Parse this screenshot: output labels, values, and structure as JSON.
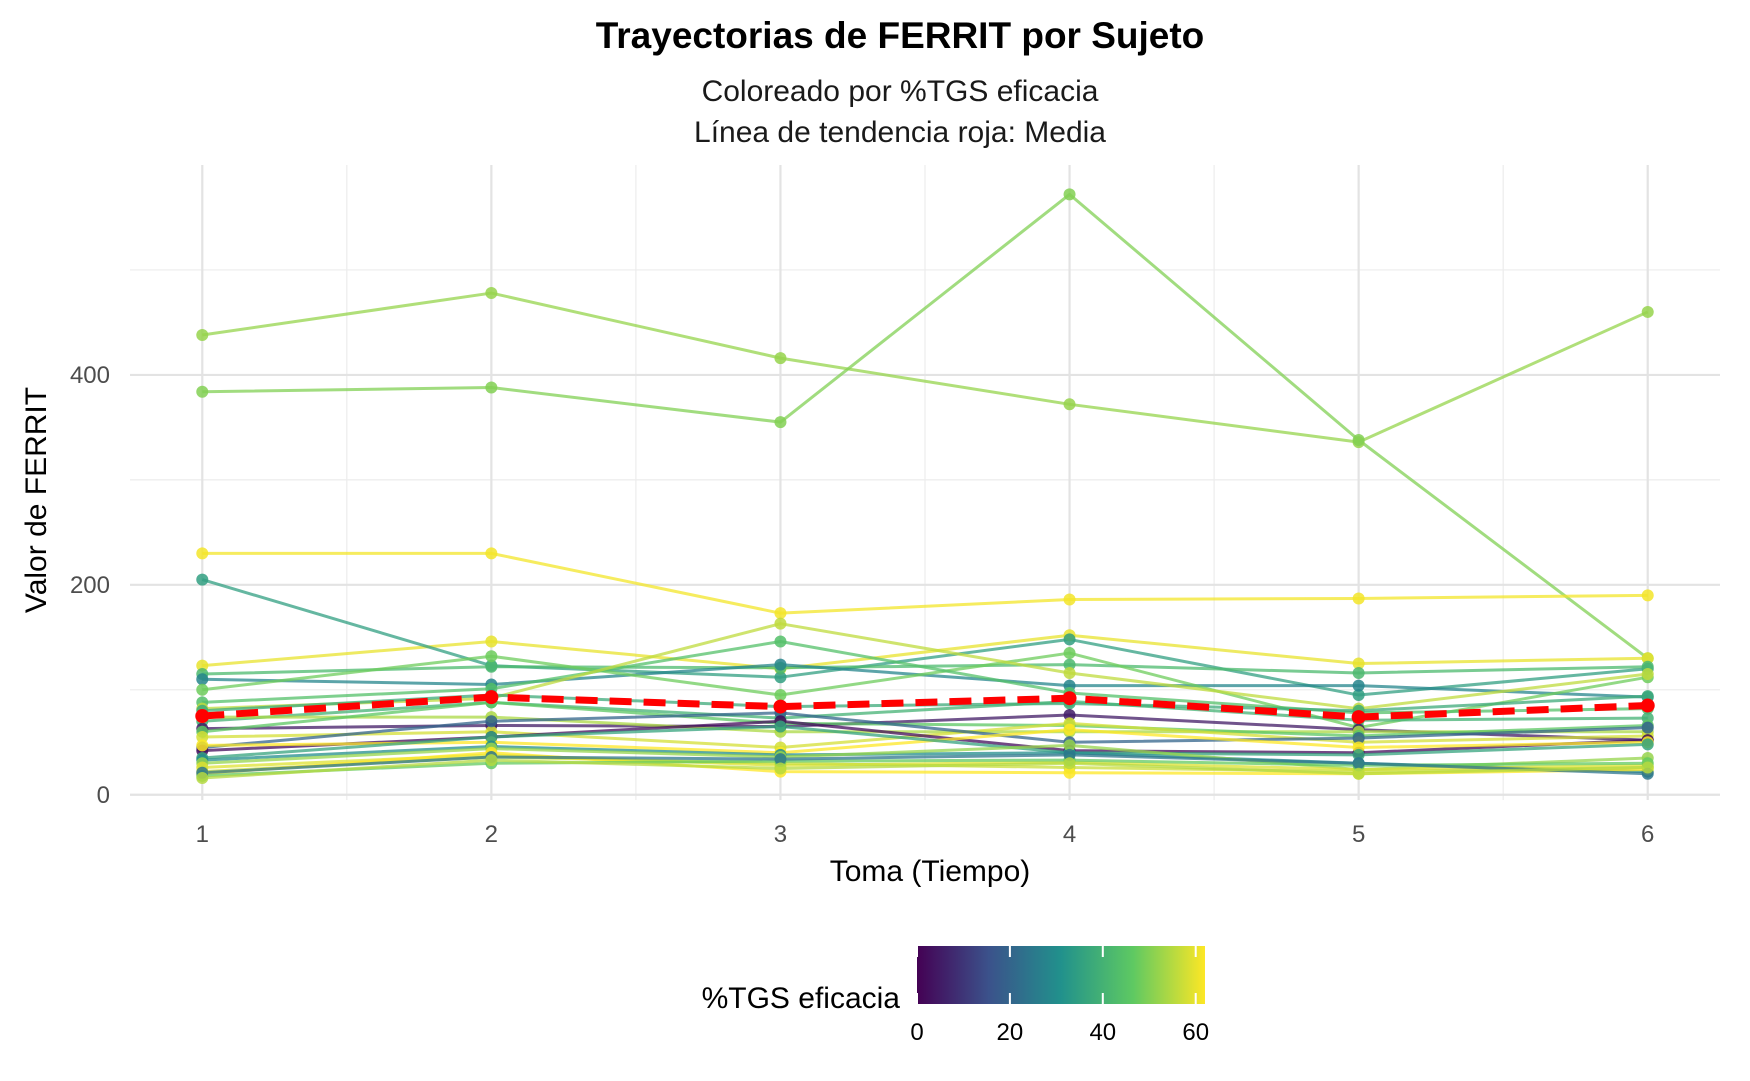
{
  "chart_data": {
    "type": "line",
    "title": "Trayectorias de FERRIT por Sujeto",
    "subtitle_lines": [
      "Coloreado por %TGS eficacia",
      "Línea de tendencia roja: Media"
    ],
    "xlabel": "Toma (Tiempo)",
    "ylabel": "Valor de FERRIT",
    "x": [
      1,
      2,
      3,
      4,
      5,
      6
    ],
    "x_tick_labels": [
      "1",
      "2",
      "3",
      "4",
      "5",
      "6"
    ],
    "y_ticks": [
      0,
      200,
      400
    ],
    "y_tick_labels": [
      "0",
      "200",
      "400"
    ],
    "xlim": [
      0.75,
      6.25
    ],
    "ylim": [
      -5,
      600
    ],
    "grid": true,
    "legend": {
      "title": "%TGS eficacia",
      "position": "bottom",
      "type": "colorbar",
      "range": [
        0,
        62
      ],
      "ticks": [
        0,
        20,
        40,
        60
      ],
      "tick_labels": [
        "0",
        "20",
        "40",
        "60"
      ],
      "palette": [
        "#440154",
        "#3b528b",
        "#21918c",
        "#5ec962",
        "#fde725"
      ]
    },
    "mean_line": {
      "label": "Media",
      "color": "#ff0000",
      "values": [
        75,
        93,
        84,
        92,
        74,
        85
      ]
    },
    "series": [
      {
        "tgs": 52,
        "values": [
          438,
          478,
          416,
          372,
          336,
          460
        ]
      },
      {
        "tgs": 50,
        "values": [
          384,
          388,
          355,
          572,
          338,
          130
        ]
      },
      {
        "tgs": 61,
        "values": [
          230,
          230,
          173,
          186,
          187,
          190
        ]
      },
      {
        "tgs": 60,
        "values": [
          123,
          146,
          120,
          152,
          125,
          130
        ]
      },
      {
        "tgs": 35,
        "values": [
          205,
          123,
          112,
          148,
          95,
          120
        ]
      },
      {
        "tgs": 42,
        "values": [
          115,
          122,
          121,
          124,
          116,
          122
        ]
      },
      {
        "tgs": 28,
        "values": [
          110,
          105,
          124,
          104,
          104,
          93
        ]
      },
      {
        "tgs": 48,
        "values": [
          100,
          132,
          95,
          135,
          64,
          112
        ]
      },
      {
        "tgs": 44,
        "values": [
          88,
          101,
          146,
          97,
          78,
          82
        ]
      },
      {
        "tgs": 56,
        "values": [
          82,
          92,
          163,
          116,
          82,
          115
        ]
      },
      {
        "tgs": 38,
        "values": [
          80,
          95,
          84,
          87,
          80,
          94
        ]
      },
      {
        "tgs": 40,
        "values": [
          70,
          88,
          73,
          89,
          71,
          73
        ]
      },
      {
        "tgs": 5,
        "values": [
          63,
          66,
          65,
          76,
          62,
          52
        ]
      },
      {
        "tgs": 54,
        "values": [
          74,
          74,
          60,
          60,
          60,
          60
        ]
      },
      {
        "tgs": 46,
        "values": [
          60,
          88,
          68,
          66,
          56,
          66
        ]
      },
      {
        "tgs": 58,
        "values": [
          55,
          60,
          45,
          68,
          50,
          56
        ]
      },
      {
        "tgs": 20,
        "values": [
          45,
          70,
          78,
          50,
          54,
          64
        ]
      },
      {
        "tgs": 2,
        "values": [
          42,
          55,
          70,
          42,
          40,
          52
        ]
      },
      {
        "tgs": 62,
        "values": [
          47,
          50,
          40,
          62,
          45,
          50
        ]
      },
      {
        "tgs": 36,
        "values": [
          35,
          55,
          65,
          40,
          38,
          48
        ]
      },
      {
        "tgs": 30,
        "values": [
          33,
          46,
          38,
          40,
          30,
          22
        ]
      },
      {
        "tgs": 52,
        "values": [
          30,
          44,
          36,
          47,
          24,
          35
        ]
      },
      {
        "tgs": 59,
        "values": [
          26,
          38,
          28,
          31,
          24,
          28
        ]
      },
      {
        "tgs": 57,
        "values": [
          22,
          36,
          30,
          26,
          22,
          26
        ]
      },
      {
        "tgs": 62,
        "values": [
          20,
          40,
          22,
          21,
          20,
          24
        ]
      },
      {
        "tgs": 47,
        "values": [
          18,
          30,
          32,
          33,
          28,
          30
        ]
      },
      {
        "tgs": 24,
        "values": [
          21,
          36,
          34,
          38,
          30,
          20
        ]
      },
      {
        "tgs": 55,
        "values": [
          16,
          33,
          25,
          30,
          20,
          26
        ]
      }
    ]
  }
}
